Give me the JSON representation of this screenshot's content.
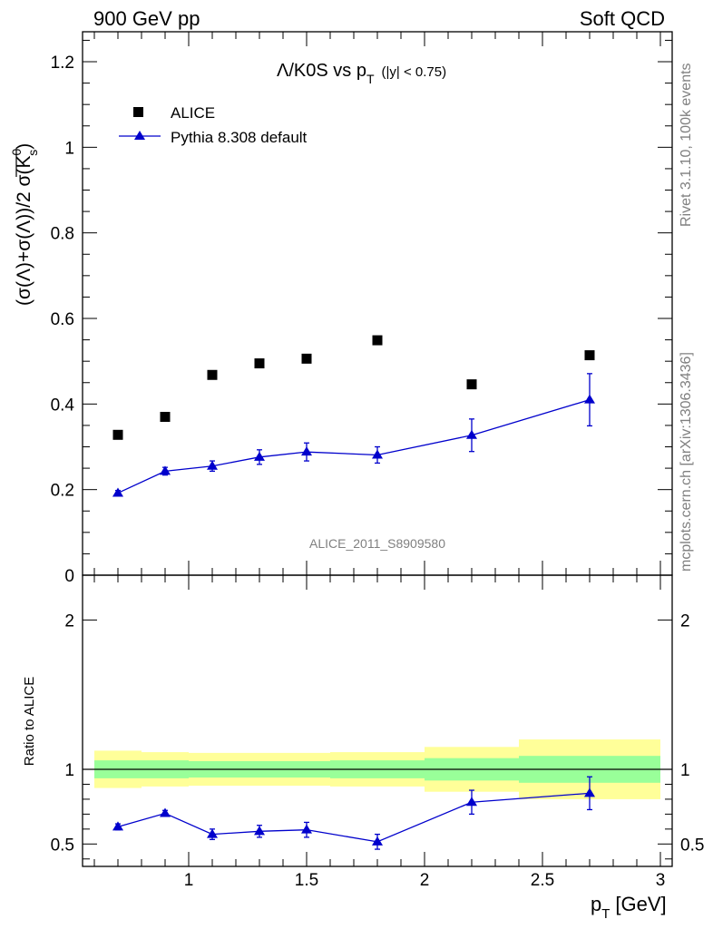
{
  "header": {
    "left": "900 GeV pp",
    "right": "Soft QCD"
  },
  "side_labels": {
    "rivet": "Rivet 3.1.10,  100k events",
    "mcplots": "mcplots.cern.ch [arXiv:1306.3436]"
  },
  "colors": {
    "mc": "#0000cc",
    "data": "#000000",
    "band_inner": "#99ff99",
    "band_outer": "#ffff99"
  },
  "chart_data": [
    {
      "type": "scatter",
      "title_main": "Λ/K0S vs p",
      "title_sub": "T",
      "title_cut": "(|y| < 0.75)",
      "ylabel": "(σ(Λ)+σ(Λ))/2 σ(K",
      "ylabel_sup": "0",
      "ylabel_sub": "s",
      "watermark": "ALICE_2011_S8909580",
      "xlim": [
        0.55,
        3.05
      ],
      "ylim": [
        0,
        1.27
      ],
      "yticks": [
        0,
        0.2,
        0.4,
        0.6,
        0.8,
        1,
        1.2
      ],
      "ytick_labels": [
        "0",
        "0.2",
        "0.4",
        "0.6",
        "0.8",
        "1",
        "1.2"
      ],
      "legend": [
        "ALICE",
        "Pythia 8.308 default"
      ],
      "legend_position": "top-left",
      "series": [
        {
          "name": "ALICE",
          "x": [
            0.7,
            0.9,
            1.1,
            1.3,
            1.5,
            1.8,
            2.2,
            2.7
          ],
          "values": [
            0.328,
            0.37,
            0.468,
            0.495,
            0.506,
            0.549,
            0.446,
            0.514
          ]
        },
        {
          "name": "Pythia 8.308 default",
          "x": [
            0.7,
            0.9,
            1.1,
            1.3,
            1.5,
            1.8,
            2.2,
            2.7
          ],
          "values": [
            0.192,
            0.243,
            0.255,
            0.276,
            0.288,
            0.281,
            0.327,
            0.41
          ],
          "errors": [
            0.006,
            0.009,
            0.012,
            0.017,
            0.021,
            0.019,
            0.038,
            0.061
          ]
        }
      ]
    },
    {
      "type": "scatter",
      "ylabel": "Ratio to ALICE",
      "xlabel": "p",
      "xlabel_sub": "T",
      "xlabel_unit": "[GeV]",
      "xlim": [
        0.55,
        3.05
      ],
      "ylim": [
        0.35,
        2.3
      ],
      "yticks": [
        0.5,
        1,
        2
      ],
      "ytick_labels": [
        "0.5",
        "1",
        "2"
      ],
      "xticks": [
        1,
        1.5,
        2,
        2.5,
        3
      ],
      "xtick_labels": [
        "1",
        "1.5",
        "2",
        "2.5",
        "3"
      ],
      "bands": {
        "edges": [
          0.6,
          0.8,
          1.0,
          1.2,
          1.4,
          1.6,
          2.0,
          2.4,
          3.0
        ],
        "inner": [
          [
            0.94,
            1.06
          ],
          [
            0.94,
            1.06
          ],
          [
            0.945,
            1.055
          ],
          [
            0.945,
            1.055
          ],
          [
            0.945,
            1.055
          ],
          [
            0.94,
            1.06
          ],
          [
            0.925,
            1.075
          ],
          [
            0.91,
            1.09
          ]
        ],
        "outer": [
          [
            0.875,
            1.125
          ],
          [
            0.885,
            1.115
          ],
          [
            0.89,
            1.11
          ],
          [
            0.89,
            1.11
          ],
          [
            0.89,
            1.11
          ],
          [
            0.885,
            1.115
          ],
          [
            0.85,
            1.15
          ],
          [
            0.8,
            1.2
          ]
        ]
      },
      "reference_line": 1,
      "series": [
        {
          "name": "Pythia 8.308 default",
          "x": [
            0.7,
            0.9,
            1.1,
            1.3,
            1.5,
            1.8,
            2.2,
            2.7
          ],
          "values": [
            0.615,
            0.705,
            0.565,
            0.585,
            0.595,
            0.515,
            0.78,
            0.84
          ],
          "errors": [
            0.02,
            0.02,
            0.035,
            0.04,
            0.05,
            0.05,
            0.08,
            0.11
          ]
        }
      ]
    }
  ]
}
